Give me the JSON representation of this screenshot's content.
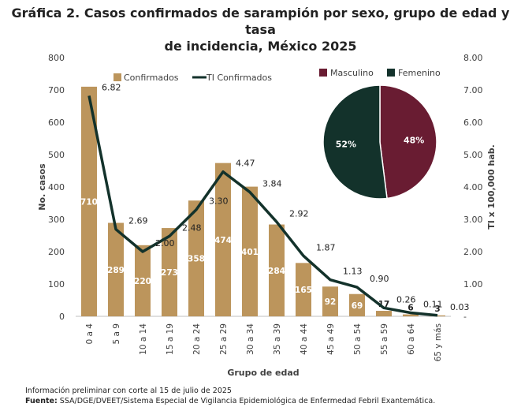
{
  "title_line1": "Gráfica 2. Casos confirmados de sarampión por sexo, grupo de edad y tasa",
  "title_line2": "de incidencia, México 2025",
  "chart_data": [
    {
      "type": "bar",
      "categories": [
        "0 a 4",
        "5 a 9",
        "10 a 14",
        "15 a 19",
        "20 a 24",
        "25 a 29",
        "30 a 34",
        "35 a 39",
        "40 a 44",
        "45 a 49",
        "50 a 54",
        "55 a 59",
        "60 a 64",
        "65 y más"
      ],
      "series": [
        {
          "name": "Confirmados",
          "type": "bar",
          "axis": "left",
          "values": [
            710,
            289,
            220,
            273,
            358,
            474,
            401,
            284,
            165,
            92,
            69,
            17,
            6,
            3
          ],
          "labels": [
            "710",
            "289",
            "220",
            "273",
            "358",
            "474",
            "401",
            "284",
            "165",
            "92",
            "69",
            "17",
            "6",
            "3"
          ]
        },
        {
          "name": "TI Confirmados",
          "type": "line",
          "axis": "right",
          "values": [
            6.82,
            2.69,
            2.0,
            2.48,
            3.3,
            4.47,
            3.84,
            2.92,
            1.87,
            1.13,
            0.9,
            0.26,
            0.11,
            0.03
          ],
          "labels": [
            "6.82",
            "2.69",
            "2.00",
            "2.48",
            "3.30",
            "4.47",
            "3.84",
            "2.92",
            "1.87",
            "1.13",
            "0.90",
            "0.26",
            "0.11",
            "0.03"
          ]
        }
      ],
      "xlabel": "Grupo de edad",
      "ylabel": "No. casos",
      "ylabel_right": "TI x 100,000 hab.",
      "ylim": [
        0,
        800
      ],
      "ylim_right": [
        0,
        8
      ],
      "yticks": [
        "0",
        "100",
        "200",
        "300",
        "400",
        "500",
        "600",
        "700",
        "800"
      ],
      "yticks_right": [
        "-",
        "1.00",
        "2.00",
        "3.00",
        "4.00",
        "5.00",
        "6.00",
        "7.00",
        "8.00"
      ],
      "legend": [
        "Confirmados",
        "TI Confirmados"
      ],
      "legend_position": "top-left",
      "grid": false,
      "colors": {
        "bar": "#BC955C",
        "line": "#13322B",
        "bar_label_inside": "#ffffff",
        "bar_label_outside": "#222222"
      }
    },
    {
      "type": "pie",
      "categories": [
        "Masculino",
        "Femenino"
      ],
      "values": [
        48,
        52
      ],
      "labels": [
        "48%",
        "52%"
      ],
      "legend": [
        "Masculino",
        "Femenino"
      ],
      "legend_position": "top",
      "colors": [
        "#691C32",
        "#13322B"
      ]
    }
  ],
  "footer": {
    "note": "Información preliminar con corte al 15 de julio de 2025",
    "source_label": "Fuente:",
    "source_text": " SSA/DGE/DVEET/Sistema Especial de Vigilancia Epidemiológica de Enfermedad Febril Exantemática."
  }
}
